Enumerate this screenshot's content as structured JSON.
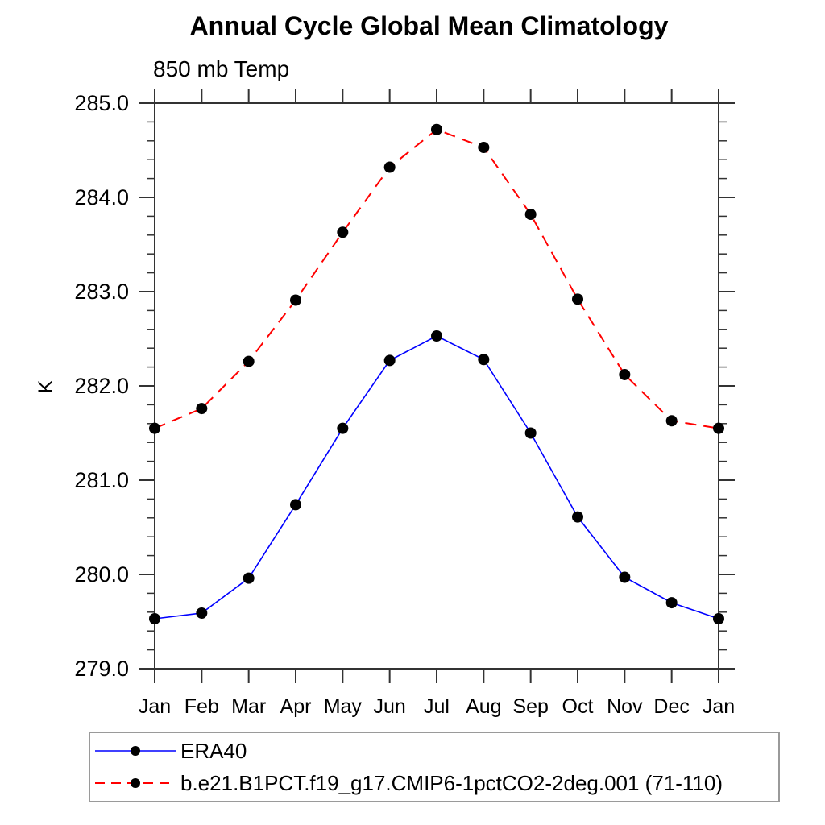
{
  "chart_data": {
    "type": "line",
    "title": "Annual Cycle Global Mean Climatology",
    "subtitle": "850 mb Temp",
    "ylabel": "K",
    "categories": [
      "Jan",
      "Feb",
      "Mar",
      "Apr",
      "May",
      "Jun",
      "Jul",
      "Aug",
      "Sep",
      "Oct",
      "Nov",
      "Dec",
      "Jan"
    ],
    "series": [
      {
        "name": "ERA40",
        "color": "#0000ff",
        "line_style": "solid",
        "marker": "filled-circle",
        "marker_color": "#000000",
        "values": [
          279.53,
          279.59,
          279.96,
          280.74,
          281.55,
          282.27,
          282.53,
          282.28,
          281.5,
          280.61,
          279.97,
          279.7,
          279.53
        ]
      },
      {
        "name": "b.e21.B1PCT.f19_g17.CMIP6-1pctCO2-2deg.001 (71-110)",
        "color": "#ff0000",
        "line_style": "dashed",
        "marker": "filled-circle",
        "marker_color": "#000000",
        "values": [
          281.55,
          281.76,
          282.26,
          282.91,
          283.63,
          284.32,
          284.72,
          284.53,
          283.82,
          282.92,
          282.12,
          281.63,
          281.55
        ]
      }
    ],
    "ylim": [
      279.0,
      285.0
    ],
    "ytick_interval": 1.0,
    "yminor_interval": 0.2,
    "ytick_labels": [
      "285.0",
      "284.0",
      "283.0",
      "282.0",
      "281.0",
      "280.0",
      "279.0"
    ],
    "grid": false,
    "legend_position": "bottom-left",
    "axis_color": "#333333",
    "text_color": "#000000"
  }
}
